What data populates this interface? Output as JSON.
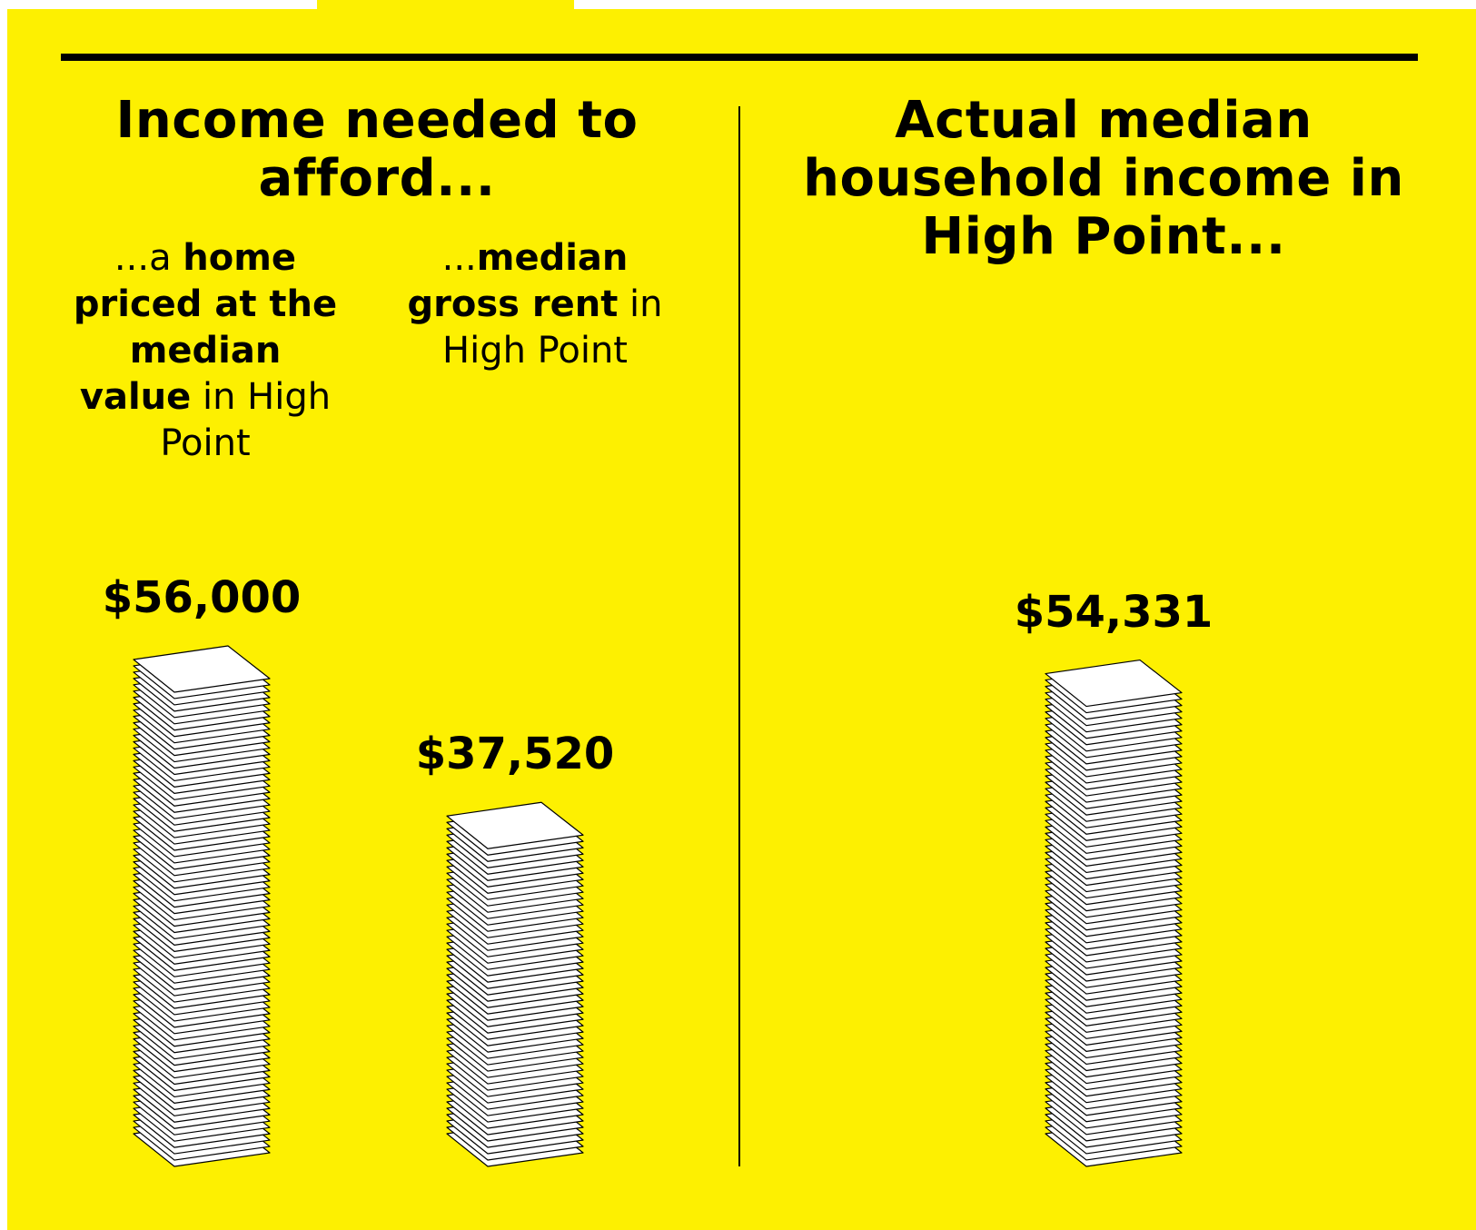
{
  "chart_data": {
    "type": "paper-stack",
    "left_title": "Income needed to afford...",
    "right_title": "Actual median household income in High Point...",
    "categories": [
      [
        {
          "text": "...a ",
          "bold": false
        },
        {
          "text": "home priced at the median value",
          "bold": true
        },
        {
          "text": " in High Point",
          "bold": false
        }
      ],
      [
        {
          "text": "...",
          "bold": false
        },
        {
          "text": "median gross rent",
          "bold": true
        },
        {
          "text": " in High Point",
          "bold": false
        }
      ],
      null
    ],
    "values": [
      56000,
      37520,
      54331
    ],
    "value_labels": [
      "$56,000",
      "$37,520",
      "$54,331"
    ],
    "background": "#fdf001",
    "sheet_color": "#ffffff"
  }
}
